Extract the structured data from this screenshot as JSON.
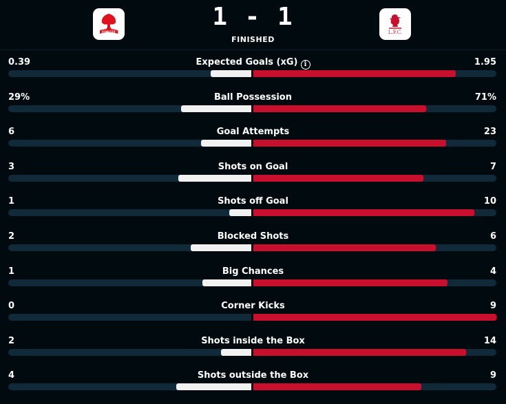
{
  "match": {
    "home_team": "Nottingham Forest",
    "away_team": "Liverpool",
    "home_logo_text": "FOREST",
    "away_logo_text": "L.F.C.",
    "score": "1 - 1",
    "status": "FINISHED",
    "colors": {
      "background": "#010a0f",
      "track": "#102a3a",
      "home_bar": "#f1f1f1",
      "away_bar": "#c8102e"
    }
  },
  "stats": [
    {
      "title": "Expected Goals (xG)",
      "home": "0.39",
      "away": "1.95",
      "home_share": 0.167,
      "away_share": 0.833,
      "info_icon": "info-icon"
    },
    {
      "title": "Ball Possession",
      "home": "29%",
      "away": "71%",
      "home_share": 0.29,
      "away_share": 0.71
    },
    {
      "title": "Goal Attempts",
      "home": "6",
      "away": "23",
      "home_share": 0.207,
      "away_share": 0.793
    },
    {
      "title": "Shots on Goal",
      "home": "3",
      "away": "7",
      "home_share": 0.3,
      "away_share": 0.7
    },
    {
      "title": "Shots off Goal",
      "home": "1",
      "away": "10",
      "home_share": 0.091,
      "away_share": 0.909
    },
    {
      "title": "Blocked Shots",
      "home": "2",
      "away": "6",
      "home_share": 0.25,
      "away_share": 0.75
    },
    {
      "title": "Big Chances",
      "home": "1",
      "away": "4",
      "home_share": 0.2,
      "away_share": 0.8
    },
    {
      "title": "Corner Kicks",
      "home": "0",
      "away": "9",
      "home_share": 0.0,
      "away_share": 1.0
    },
    {
      "title": "Shots inside the Box",
      "home": "2",
      "away": "14",
      "home_share": 0.125,
      "away_share": 0.875
    },
    {
      "title": "Shots outside the Box",
      "home": "4",
      "away": "9",
      "home_share": 0.308,
      "away_share": 0.692
    }
  ]
}
